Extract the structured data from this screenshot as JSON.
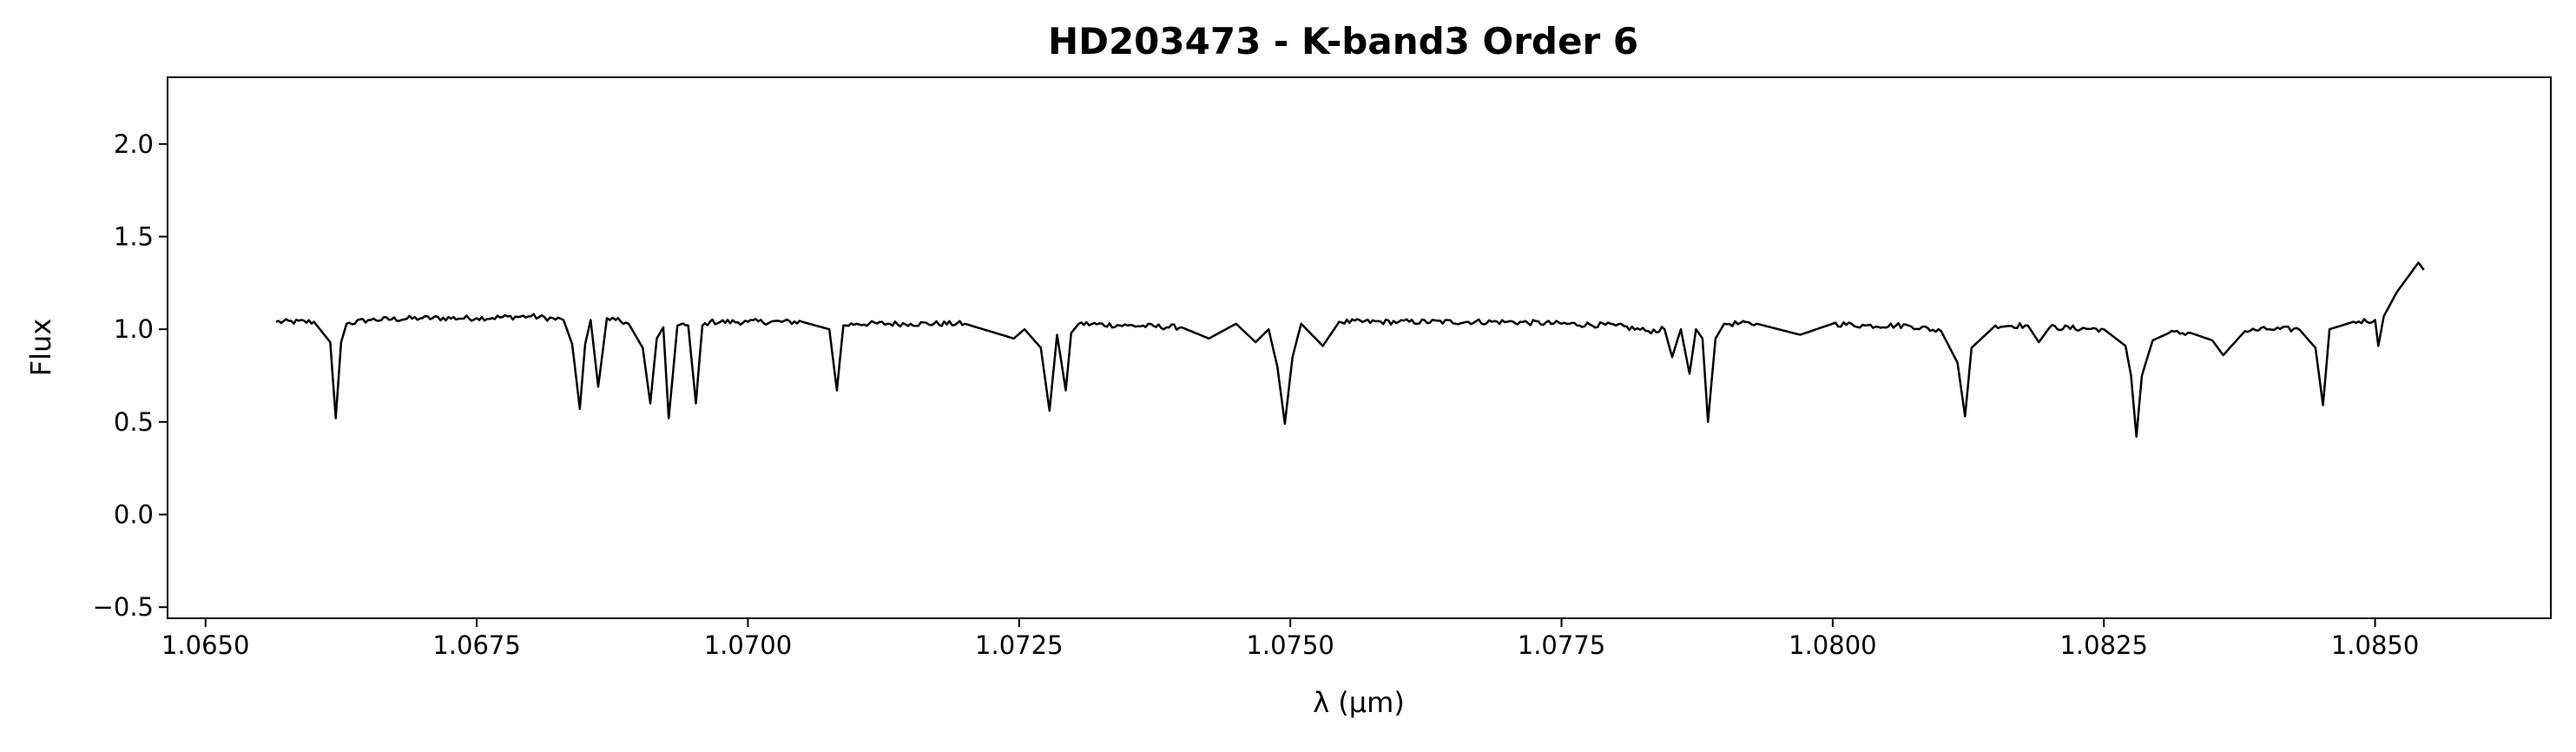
{
  "chart_data": {
    "type": "line",
    "title": "HD203473 - K-band3 Order 6",
    "xlabel": "λ (μm)",
    "ylabel": "Flux",
    "xlim": [
      1.06465,
      1.08662
    ],
    "ylim": [
      -0.56,
      2.36
    ],
    "x_ticks": [
      1.065,
      1.0675,
      1.07,
      1.0725,
      1.075,
      1.0775,
      1.08,
      1.0825,
      1.085
    ],
    "x_tick_labels": [
      "1.0650",
      "1.0675",
      "1.0700",
      "1.0725",
      "1.0750",
      "1.0775",
      "1.0800",
      "1.0825",
      "1.0850"
    ],
    "y_ticks": [
      -0.5,
      0.0,
      0.5,
      1.0,
      1.5,
      2.0
    ],
    "y_tick_labels": [
      "−0.5",
      "0.0",
      "0.5",
      "1.0",
      "1.5",
      "2.0"
    ],
    "grid": false,
    "line_color": "#000000",
    "series": [
      {
        "x": [
          1.06565,
          1.066,
          1.06615,
          1.0662,
          1.06625,
          1.0663,
          1.0665,
          1.067,
          1.0675,
          1.068,
          1.0683,
          1.06838,
          1.06845,
          1.0685,
          1.06855,
          1.06862,
          1.0687,
          1.06878,
          1.0689,
          1.06903,
          1.0691,
          1.06916,
          1.06922,
          1.06927,
          1.06935,
          1.06945,
          1.06952,
          1.06958,
          1.06965,
          1.07,
          1.0705,
          1.07075,
          1.07082,
          1.07088,
          1.071,
          1.0715,
          1.072,
          1.07245,
          1.07255,
          1.0727,
          1.07278,
          1.07285,
          1.07293,
          1.07298,
          1.07305,
          1.0735,
          1.074,
          1.07425,
          1.0745,
          1.07468,
          1.0748,
          1.07488,
          1.07495,
          1.07502,
          1.0751,
          1.0753,
          1.07545,
          1.076,
          1.077,
          1.078,
          1.0783,
          1.07845,
          1.07852,
          1.0786,
          1.07868,
          1.07874,
          1.0788,
          1.07885,
          1.07892,
          1.079,
          1.0793,
          1.0797,
          1.08,
          1.0803,
          1.0807,
          1.081,
          1.08115,
          1.08122,
          1.08128,
          1.0815,
          1.0818,
          1.0819,
          1.082,
          1.0825,
          1.0827,
          1.08275,
          1.0828,
          1.08285,
          1.08295,
          1.0831,
          1.0833,
          1.0835,
          1.0836,
          1.0838,
          1.084,
          1.0843,
          1.08445,
          1.08452,
          1.08458,
          1.0848,
          1.085,
          1.08503,
          1.08508,
          1.0852,
          1.0853,
          1.0854,
          1.08545
        ],
        "y": [
          1.04,
          1.04,
          0.93,
          0.52,
          0.93,
          1.03,
          1.05,
          1.06,
          1.06,
          1.07,
          1.05,
          0.92,
          0.57,
          0.92,
          1.05,
          0.69,
          1.06,
          1.05,
          1.03,
          0.9,
          0.6,
          0.95,
          1.01,
          0.52,
          1.02,
          1.02,
          0.6,
          1.02,
          1.04,
          1.04,
          1.04,
          1.0,
          0.67,
          1.02,
          1.03,
          1.03,
          1.03,
          0.95,
          1.0,
          0.9,
          0.56,
          0.97,
          0.67,
          0.98,
          1.03,
          1.02,
          1.01,
          0.95,
          1.03,
          0.93,
          1.0,
          0.8,
          0.49,
          0.85,
          1.03,
          0.91,
          1.04,
          1.04,
          1.04,
          1.02,
          0.99,
          1.0,
          0.85,
          1.0,
          0.76,
          1.0,
          0.95,
          0.5,
          0.95,
          1.03,
          1.03,
          0.97,
          1.03,
          1.02,
          1.02,
          0.99,
          0.82,
          0.53,
          0.9,
          1.02,
          1.02,
          0.93,
          1.01,
          1.0,
          0.91,
          0.75,
          0.42,
          0.75,
          0.94,
          0.98,
          0.98,
          0.94,
          0.86,
          0.99,
          1.0,
          1.0,
          0.9,
          0.59,
          1.0,
          1.04,
          1.05,
          0.91,
          1.07,
          1.2,
          1.28,
          1.36,
          1.32
        ]
      }
    ]
  }
}
